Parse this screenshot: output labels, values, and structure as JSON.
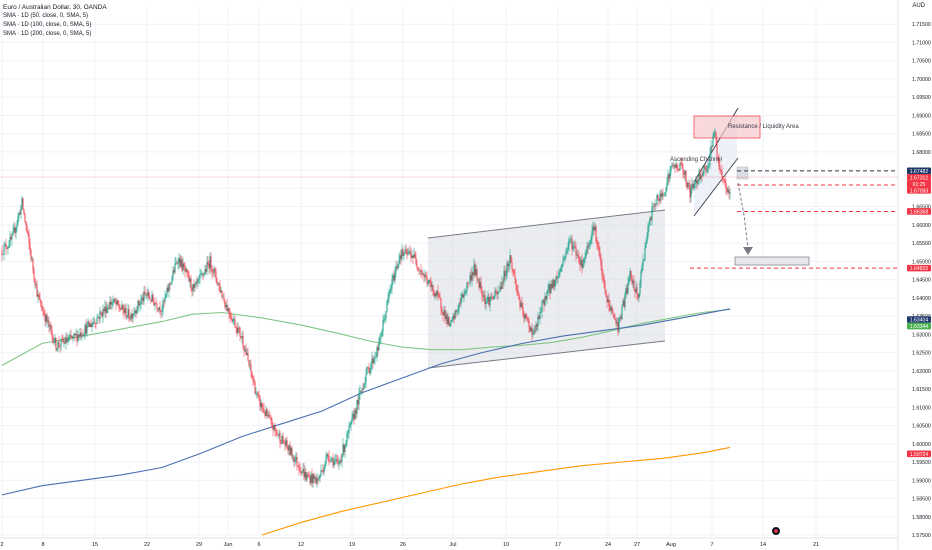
{
  "header": {
    "pair": "Euro / Australian Dollar, 30, OANDA",
    "indicators": [
      "SMA · 1D (50, close, 0, SMA, 5)",
      "SMA · 1D (100, close, 0, SMA, 5)",
      "SMA · 1D (200, close, 0, SMA, 5)"
    ],
    "currency": "AUD"
  },
  "colors": {
    "up": "#089981",
    "down": "#f23645",
    "sma50": "#81c784",
    "sma100": "#4a6fb0",
    "sma200": "#ff9800",
    "grid": "#f0f3fa",
    "channel_fill": "#d1d4dc",
    "drawing": "#787b86",
    "resistance_fill": "#f7c9cc",
    "text": "#131722"
  },
  "chart_data": {
    "type": "candlestick",
    "title": "Euro / Australian Dollar, 30, OANDA",
    "ylim": [
      1.575,
      1.72
    ],
    "y_ticks": [
      "1.71500",
      "1.71000",
      "1.70500",
      "1.70000",
      "1.69500",
      "1.69000",
      "1.68500",
      "1.68000",
      "1.67500",
      "1.67000",
      "1.66500",
      "1.66000",
      "1.65500",
      "1.65000",
      "1.64500",
      "1.64000",
      "1.63500",
      "1.63000",
      "1.62500",
      "1.62000",
      "1.61500",
      "1.61000",
      "1.60500",
      "1.60000",
      "1.59500",
      "1.59000",
      "1.58500",
      "1.58000",
      "1.57500"
    ],
    "x_ticks": [
      "2",
      "8",
      "15",
      "22",
      "29",
      "Jun",
      "6",
      "12",
      "19",
      "26",
      "Jul",
      "10",
      "17",
      "24",
      "27",
      "Aug",
      "7",
      "14",
      "21"
    ],
    "price_path": [
      [
        0,
        1.653
      ],
      [
        5,
        1.656
      ],
      [
        10,
        1.666
      ],
      [
        18,
        1.64
      ],
      [
        27,
        1.627
      ],
      [
        36,
        1.629
      ],
      [
        45,
        1.633
      ],
      [
        55,
        1.639
      ],
      [
        64,
        1.635
      ],
      [
        72,
        1.641
      ],
      [
        80,
        1.637
      ],
      [
        88,
        1.651
      ],
      [
        96,
        1.642
      ],
      [
        104,
        1.65
      ],
      [
        112,
        1.638
      ],
      [
        120,
        1.629
      ],
      [
        128,
        1.612
      ],
      [
        136,
        1.604
      ],
      [
        144,
        1.598
      ],
      [
        152,
        1.591
      ],
      [
        158,
        1.59
      ],
      [
        163,
        1.597
      ],
      [
        168,
        1.594
      ],
      [
        175,
        1.606
      ],
      [
        182,
        1.619
      ],
      [
        188,
        1.626
      ],
      [
        194,
        1.642
      ],
      [
        199,
        1.652
      ],
      [
        205,
        1.652
      ],
      [
        211,
        1.646
      ],
      [
        218,
        1.64
      ],
      [
        224,
        1.632
      ],
      [
        230,
        1.64
      ],
      [
        236,
        1.648
      ],
      [
        242,
        1.639
      ],
      [
        248,
        1.641
      ],
      [
        254,
        1.651
      ],
      [
        260,
        1.636
      ],
      [
        266,
        1.63
      ],
      [
        272,
        1.641
      ],
      [
        278,
        1.646
      ],
      [
        284,
        1.656
      ],
      [
        290,
        1.649
      ],
      [
        296,
        1.66
      ],
      [
        302,
        1.64
      ],
      [
        308,
        1.632
      ],
      [
        314,
        1.646
      ],
      [
        318,
        1.64
      ],
      [
        322,
        1.656
      ],
      [
        326,
        1.666
      ],
      [
        330,
        1.668
      ],
      [
        335,
        1.676
      ],
      [
        340,
        1.676
      ],
      [
        344,
        1.669
      ],
      [
        349,
        1.674
      ],
      [
        353,
        1.676
      ],
      [
        356,
        1.686
      ],
      [
        359,
        1.674
      ],
      [
        362,
        1.67
      ],
      [
        364,
        1.668
      ]
    ],
    "series": [
      {
        "name": "SMA · 1D (50, close, 0, SMA, 5)",
        "points": [
          [
            0,
            1.6215
          ],
          [
            20,
            1.6275
          ],
          [
            40,
            1.6295
          ],
          [
            60,
            1.6315
          ],
          [
            80,
            1.6335
          ],
          [
            95,
            1.6355
          ],
          [
            110,
            1.636
          ],
          [
            130,
            1.6345
          ],
          [
            150,
            1.6325
          ],
          [
            170,
            1.63
          ],
          [
            185,
            1.628
          ],
          [
            200,
            1.6265
          ],
          [
            215,
            1.6258
          ],
          [
            230,
            1.6258
          ],
          [
            245,
            1.6265
          ],
          [
            260,
            1.627
          ],
          [
            275,
            1.6278
          ],
          [
            290,
            1.6292
          ],
          [
            305,
            1.631
          ],
          [
            320,
            1.633
          ],
          [
            335,
            1.6345
          ],
          [
            350,
            1.636
          ],
          [
            364,
            1.6368
          ]
        ]
      },
      {
        "name": "SMA · 1D (100, close, 0, SMA, 5)",
        "points": [
          [
            0,
            1.586
          ],
          [
            20,
            1.5885
          ],
          [
            40,
            1.59
          ],
          [
            60,
            1.5915
          ],
          [
            80,
            1.5935
          ],
          [
            100,
            1.5975
          ],
          [
            120,
            1.602
          ],
          [
            140,
            1.6055
          ],
          [
            160,
            1.609
          ],
          [
            180,
            1.614
          ],
          [
            200,
            1.618
          ],
          [
            220,
            1.622
          ],
          [
            240,
            1.625
          ],
          [
            260,
            1.6275
          ],
          [
            280,
            1.6295
          ],
          [
            300,
            1.631
          ],
          [
            320,
            1.6325
          ],
          [
            340,
            1.6345
          ],
          [
            364,
            1.637
          ]
        ]
      },
      {
        "name": "SMA · 1D (200, close, 0, SMA, 5)",
        "points": [
          [
            130,
            1.575
          ],
          [
            150,
            1.5785
          ],
          [
            170,
            1.5815
          ],
          [
            190,
            1.584
          ],
          [
            210,
            1.5865
          ],
          [
            230,
            1.589
          ],
          [
            250,
            1.591
          ],
          [
            270,
            1.5925
          ],
          [
            290,
            1.594
          ],
          [
            310,
            1.595
          ],
          [
            330,
            1.596
          ],
          [
            350,
            1.5975
          ],
          [
            364,
            1.599
          ]
        ]
      }
    ],
    "price_labels": [
      {
        "text": "1.67482",
        "value": 1.67482,
        "bg": "#1f3a6b",
        "fg": "#ffffff"
      },
      {
        "text": "1.67312",
        "value": 1.67312,
        "bg": "#f23645",
        "fg": "#ffffff"
      },
      {
        "text": "01:25",
        "value": 1.6721,
        "bg": "#f23645",
        "fg": "#ffffff"
      },
      {
        "text": "1.67093",
        "value": 1.67093,
        "bg": "#f23645",
        "fg": "#ffffff"
      },
      {
        "text": "1.66368",
        "value": 1.66368,
        "bg": "#f23645",
        "fg": "#ffffff"
      },
      {
        "text": "1.64815",
        "value": 1.64815,
        "bg": "#f23645",
        "fg": "#ffffff"
      },
      {
        "text": "1.63404",
        "value": 1.63404,
        "bg": "#1f3a6b",
        "fg": "#ffffff"
      },
      {
        "text": "1.63344",
        "value": 1.63344,
        "bg": "#4caf50",
        "fg": "#ffffff"
      },
      {
        "text": "1.59724",
        "value": 1.59724,
        "bg": "#f23645",
        "fg": "#ffffff"
      }
    ],
    "annotations": [
      {
        "text": "Resistance / Liquidity Area"
      },
      {
        "text": "Ascending Channel"
      }
    ]
  }
}
